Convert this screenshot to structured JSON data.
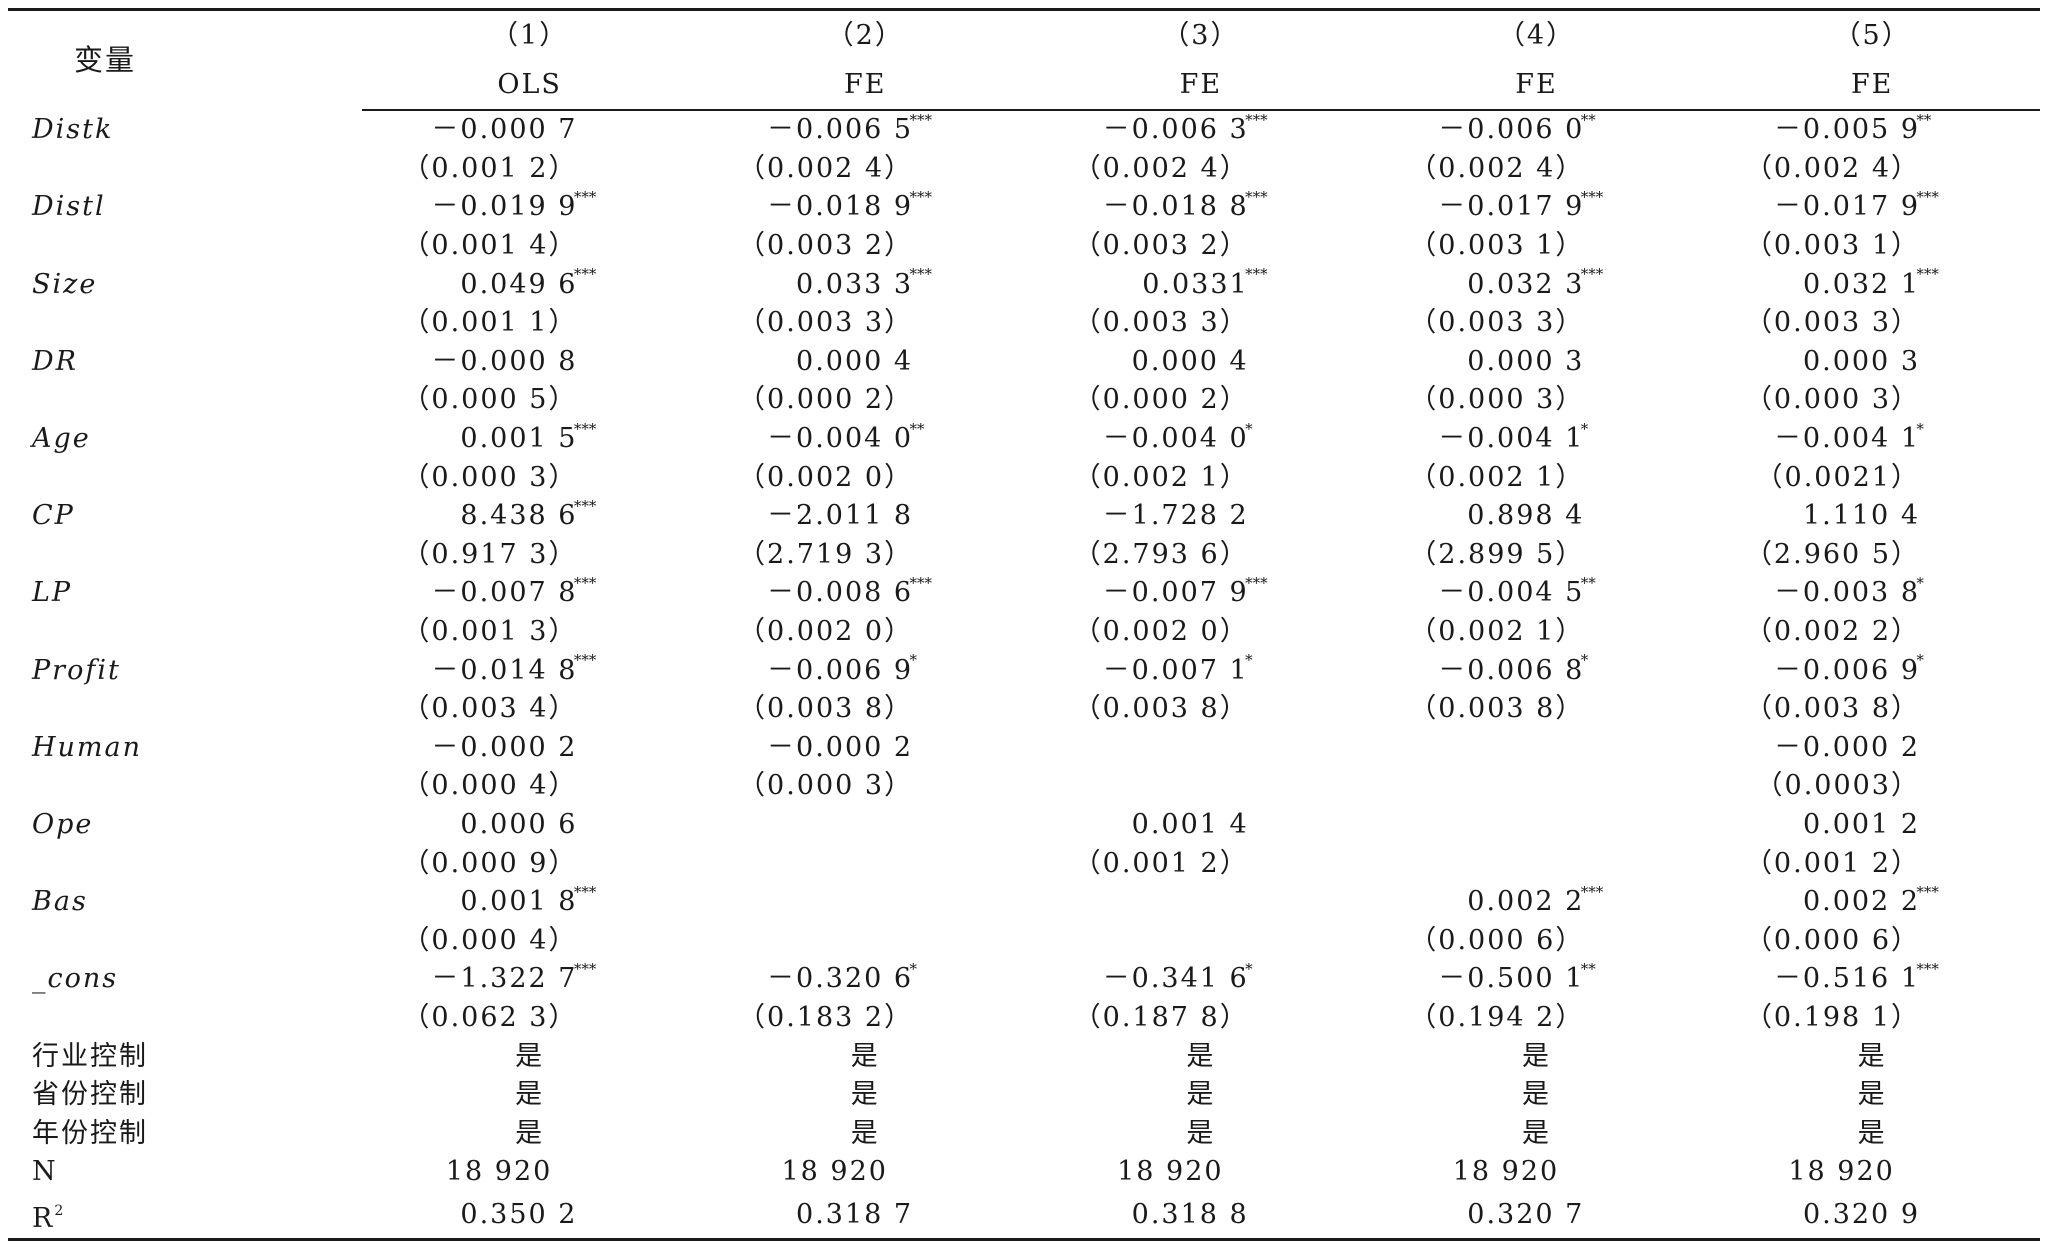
{
  "header": {
    "variable_label": "变量",
    "col_numbers": [
      "（1）",
      "（2）",
      "（3）",
      "（4）",
      "（5）"
    ],
    "col_methods": [
      "OLS",
      "FE",
      "FE",
      "FE",
      "FE"
    ]
  },
  "coef_rows": [
    {
      "var": "Distk",
      "coef": [
        [
          "－0.000 7",
          ""
        ],
        [
          "－0.006 5",
          "***"
        ],
        [
          "－0.006 3",
          "***"
        ],
        [
          "－0.006 0",
          "**"
        ],
        [
          "－0.005 9",
          "**"
        ]
      ],
      "se": [
        "（0.001 2）",
        "（0.002 4）",
        "（0.002 4）",
        "（0.002 4）",
        "（0.002 4）"
      ]
    },
    {
      "var": "Distl",
      "coef": [
        [
          "－0.019 9",
          "***"
        ],
        [
          "－0.018 9",
          "***"
        ],
        [
          "－0.018 8",
          "***"
        ],
        [
          "－0.017 9",
          "***"
        ],
        [
          "－0.017 9",
          "***"
        ]
      ],
      "se": [
        "（0.001 4）",
        "（0.003 2）",
        "（0.003 2）",
        "（0.003 1）",
        "（0.003 1）"
      ]
    },
    {
      "var": "Size",
      "coef": [
        [
          "0.049 6",
          "***"
        ],
        [
          "0.033 3",
          "***"
        ],
        [
          "0.0331",
          "***"
        ],
        [
          "0.032 3",
          "***"
        ],
        [
          "0.032 1",
          "***"
        ]
      ],
      "se": [
        "（0.001 1）",
        "（0.003 3）",
        "（0.003 3）",
        "（0.003 3）",
        "（0.003 3）"
      ]
    },
    {
      "var": "DR",
      "coef": [
        [
          "－0.000 8",
          ""
        ],
        [
          "0.000 4",
          ""
        ],
        [
          "0.000 4",
          ""
        ],
        [
          "0.000 3",
          ""
        ],
        [
          "0.000 3",
          ""
        ]
      ],
      "se": [
        "（0.000 5）",
        "（0.000 2）",
        "（0.000 2）",
        "（0.000 3）",
        "（0.000 3）"
      ]
    },
    {
      "var": "Age",
      "coef": [
        [
          "0.001 5",
          "***"
        ],
        [
          "－0.004 0",
          "**"
        ],
        [
          "－0.004 0",
          "*"
        ],
        [
          "－0.004 1",
          "*"
        ],
        [
          "－0.004 1",
          "*"
        ]
      ],
      "se": [
        "（0.000 3）",
        "（0.002 0）",
        "（0.002 1）",
        "（0.002 1）",
        "（0.0021）"
      ]
    },
    {
      "var": "CP",
      "coef": [
        [
          "8.438 6",
          "***"
        ],
        [
          "－2.011 8",
          ""
        ],
        [
          "－1.728 2",
          ""
        ],
        [
          "0.898 4",
          ""
        ],
        [
          "1.110 4",
          ""
        ]
      ],
      "se": [
        "（0.917 3）",
        "（2.719 3）",
        "（2.793 6）",
        "（2.899 5）",
        "（2.960 5）"
      ]
    },
    {
      "var": "LP",
      "coef": [
        [
          "－0.007 8",
          "***"
        ],
        [
          "－0.008 6",
          "***"
        ],
        [
          "－0.007 9",
          "***"
        ],
        [
          "－0.004 5",
          "**"
        ],
        [
          "－0.003 8",
          "*"
        ]
      ],
      "se": [
        "（0.001 3）",
        "（0.002 0）",
        "（0.002 0）",
        "（0.002 1）",
        "（0.002 2）"
      ]
    },
    {
      "var": "Profit",
      "coef": [
        [
          "－0.014 8",
          "***"
        ],
        [
          "－0.006 9",
          "*"
        ],
        [
          "－0.007 1",
          "*"
        ],
        [
          "－0.006 8",
          "*"
        ],
        [
          "－0.006 9",
          "*"
        ]
      ],
      "se": [
        "（0.003 4）",
        "（0.003 8）",
        "（0.003 8）",
        "（0.003 8）",
        "（0.003 8）"
      ]
    },
    {
      "var": "Human",
      "coef": [
        [
          "－0.000 2",
          ""
        ],
        [
          "－0.000 2",
          ""
        ],
        [
          "",
          ""
        ],
        [
          "",
          ""
        ],
        [
          "－0.000 2",
          ""
        ]
      ],
      "se": [
        "（0.000 4）",
        "（0.000 3）",
        "",
        "",
        "（0.0003）"
      ]
    },
    {
      "var": "Ope",
      "coef": [
        [
          "0.000 6",
          ""
        ],
        [
          "",
          ""
        ],
        [
          "0.001 4",
          ""
        ],
        [
          "",
          ""
        ],
        [
          "0.001 2",
          ""
        ]
      ],
      "se": [
        "（0.000 9）",
        "",
        "（0.001 2）",
        "",
        "（0.001 2）"
      ]
    },
    {
      "var": "Bas",
      "coef": [
        [
          "0.001 8",
          "***"
        ],
        [
          "",
          ""
        ],
        [
          "",
          ""
        ],
        [
          "0.002 2",
          "***"
        ],
        [
          "0.002 2",
          "***"
        ]
      ],
      "se": [
        "（0.000 4）",
        "",
        "",
        "（0.000 6）",
        "（0.000 6）"
      ]
    },
    {
      "var": "_cons",
      "coef": [
        [
          "－1.322 7",
          "***"
        ],
        [
          "－0.320 6",
          "*"
        ],
        [
          "－0.341 6",
          "*"
        ],
        [
          "－0.500 1",
          "**"
        ],
        [
          "－0.516 1",
          "***"
        ]
      ],
      "se": [
        "（0.062 3）",
        "（0.183 2）",
        "（0.187 8）",
        "（0.194 2）",
        "（0.198 1）"
      ]
    }
  ],
  "control_rows": [
    {
      "label": "行业控制",
      "values": [
        "是",
        "是",
        "是",
        "是",
        "是"
      ]
    },
    {
      "label": "省份控制",
      "values": [
        "是",
        "是",
        "是",
        "是",
        "是"
      ]
    },
    {
      "label": "年份控制",
      "values": [
        "是",
        "是",
        "是",
        "是",
        "是"
      ]
    }
  ],
  "n_row": {
    "label": "N",
    "values": [
      "18 920",
      "18 920",
      "18 920",
      "18 920",
      "18 920"
    ]
  },
  "r2_row": {
    "label": "R",
    "label_sup": "2",
    "values": [
      "0.350 2",
      "0.318 7",
      "0.318 8",
      "0.320 7",
      "0.320 9"
    ]
  }
}
